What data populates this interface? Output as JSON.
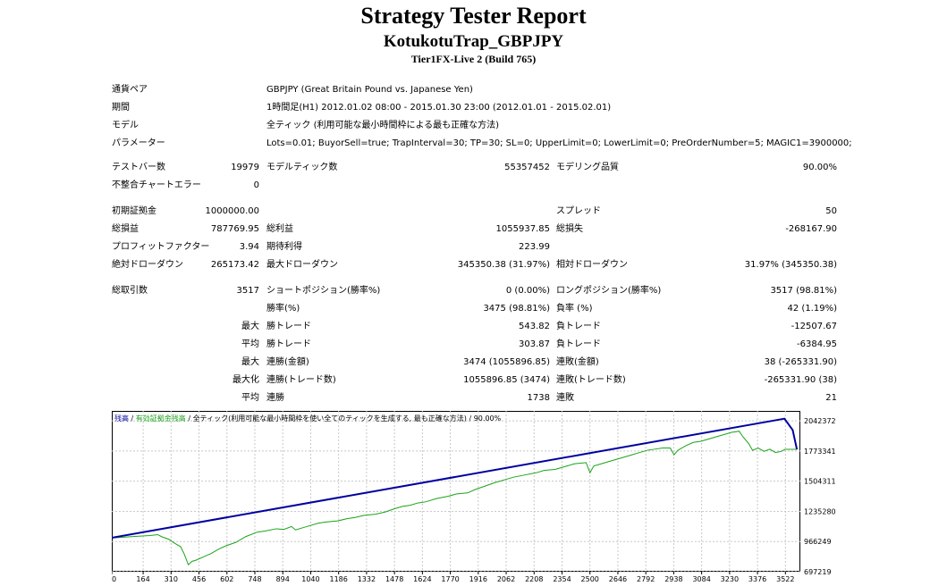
{
  "header": {
    "title": "Strategy Tester Report",
    "expert": "KotukotuTrap_GBPJPY",
    "server": "Tier1FX-Live 2 (Build 765)"
  },
  "settings": {
    "symbol_label": "通貨ペア",
    "symbol": "GBPJPY (Great Britain Pound vs. Japanese Yen)",
    "period_label": "期間",
    "period": "1時間足(H1) 2012.01.02 08:00 - 2015.01.30 23:00 (2012.01.01 - 2015.02.01)",
    "model_label": "モデル",
    "model": "全ティック (利用可能な最小時間枠による最も正確な方法)",
    "params_label": "パラメーター",
    "params": "Lots=0.01; BuyorSell=true; TrapInterval=30; TP=30; SL=0; UpperLimit=0; LowerLimit=0; PreOrderNumber=5; MAGIC1=3900000;"
  },
  "stats": {
    "bars_label": "テストバー数",
    "bars": "19979",
    "ticks_label": "モデルティック数",
    "ticks": "55357452",
    "quality_label": "モデリング品質",
    "quality": "90.00%",
    "errors_label": "不整合チャートエラー",
    "errors": "0",
    "deposit_label": "初期証拠金",
    "deposit": "1000000.00",
    "spread_label": "スプレッド",
    "spread": "50",
    "net_label": "総損益",
    "net": "787769.95",
    "gross_profit_label": "総利益",
    "gross_profit": "1055937.85",
    "gross_loss_label": "総損失",
    "gross_loss": "-268167.90",
    "pf_label": "プロフィットファクター",
    "pf": "3.94",
    "payoff_label": "期待利得",
    "payoff": "223.99",
    "abs_dd_label": "絶対ドローダウン",
    "abs_dd": "265173.42",
    "max_dd_label": "最大ドローダウン",
    "max_dd": "345350.38 (31.97%)",
    "rel_dd_label": "相対ドローダウン",
    "rel_dd": "31.97% (345350.38)",
    "trades_label": "総取引数",
    "trades": "3517",
    "short_label": "ショートポジション(勝率%)",
    "short": "0 (0.00%)",
    "long_label": "ロングポジション(勝率%)",
    "long": "3517 (98.81%)",
    "win_label": "勝率(%)",
    "win": "3475 (98.81%)",
    "loss_label": "負率 (%)",
    "loss": "42 (1.19%)",
    "max_label": "最大",
    "largest_win_label": "勝トレード",
    "largest_win": "543.82",
    "largest_loss_label": "負トレード",
    "largest_loss": "-12507.67",
    "avg_label": "平均",
    "avg_win_label": "勝トレード",
    "avg_win": "303.87",
    "avg_loss_label": "負トレード",
    "avg_loss": "-6384.95",
    "max2_label": "最大",
    "cons_wins_money_label": "連勝(金額)",
    "cons_wins_money": "3474 (1055896.85)",
    "cons_losses_money_label": "連敗(金額)",
    "cons_losses_money": "38 (-265331.90)",
    "maxi_label": "最大化",
    "cons_profit_label": "連勝(トレード数)",
    "cons_profit": "1055896.85 (3474)",
    "cons_loss_label": "連敗(トレード数)",
    "cons_loss": "-265331.90 (38)",
    "avg2_label": "平均",
    "avg_cons_wins_label": "連勝",
    "avg_cons_wins": "1738",
    "avg_cons_losses_label": "連敗",
    "avg_cons_losses": "21"
  },
  "chart_data": {
    "type": "line",
    "legend": {
      "balance": "残高",
      "equity": "有効証拠金残高",
      "model": "全ティック(利用可能な最小時間枠を使い全てのティックを生成する, 最も正確な方法)",
      "quality": "90.00%"
    },
    "x_ticks": [
      "0",
      "164",
      "310",
      "456",
      "602",
      "748",
      "894",
      "1040",
      "1186",
      "1332",
      "1478",
      "1624",
      "1770",
      "1916",
      "2062",
      "2208",
      "2354",
      "2500",
      "2646",
      "2792",
      "2938",
      "3084",
      "3230",
      "3376",
      "3522"
    ],
    "y_ticks": [
      "2042372",
      "1773341",
      "1504311",
      "1235280",
      "966249",
      "697219"
    ],
    "ylim": [
      697219,
      2131000
    ],
    "xlim": [
      0,
      3600
    ],
    "colors": {
      "balance": "#0000a0",
      "equity": "#1aa31a",
      "grid": "#c8c8c8"
    },
    "series": [
      {
        "name": "残高",
        "x": [
          0,
          3517,
          3560,
          3582
        ],
        "y": [
          1000000,
          2062000,
          1960000,
          1788000
        ]
      },
      {
        "name": "有効証拠金残高",
        "x": [
          0,
          60,
          120,
          200,
          240,
          260,
          300,
          330,
          360,
          380,
          400,
          420,
          440,
          480,
          520,
          560,
          600,
          650,
          700,
          760,
          800,
          860,
          900,
          940,
          960,
          1000,
          1040,
          1080,
          1120,
          1180,
          1230,
          1270,
          1320,
          1380,
          1430,
          1480,
          1520,
          1560,
          1600,
          1640,
          1700,
          1760,
          1800,
          1860,
          1900,
          1950,
          2000,
          2060,
          2100,
          2160,
          2220,
          2260,
          2320,
          2380,
          2420,
          2480,
          2500,
          2520,
          2560,
          2600,
          2640,
          2680,
          2720,
          2760,
          2800,
          2840,
          2880,
          2920,
          2940,
          2960,
          3000,
          3040,
          3080,
          3120,
          3160,
          3200,
          3240,
          3280,
          3300,
          3330,
          3350,
          3380,
          3410,
          3440,
          3470,
          3500,
          3520,
          3582
        ],
        "y": [
          998000,
          1005000,
          1012000,
          1020000,
          1028000,
          1010000,
          985000,
          950000,
          920000,
          850000,
          760000,
          790000,
          800000,
          830000,
          860000,
          900000,
          930000,
          960000,
          1010000,
          1050000,
          1060000,
          1080000,
          1075000,
          1100000,
          1070000,
          1090000,
          1110000,
          1130000,
          1140000,
          1150000,
          1170000,
          1180000,
          1200000,
          1210000,
          1230000,
          1260000,
          1280000,
          1290000,
          1310000,
          1320000,
          1350000,
          1370000,
          1390000,
          1400000,
          1430000,
          1460000,
          1490000,
          1520000,
          1540000,
          1560000,
          1580000,
          1600000,
          1610000,
          1640000,
          1660000,
          1670000,
          1580000,
          1640000,
          1660000,
          1680000,
          1700000,
          1720000,
          1740000,
          1760000,
          1780000,
          1790000,
          1800000,
          1800000,
          1740000,
          1780000,
          1820000,
          1850000,
          1860000,
          1880000,
          1900000,
          1920000,
          1940000,
          1950000,
          1900000,
          1840000,
          1780000,
          1800000,
          1770000,
          1790000,
          1760000,
          1770000,
          1788000,
          1788000
        ]
      }
    ]
  }
}
